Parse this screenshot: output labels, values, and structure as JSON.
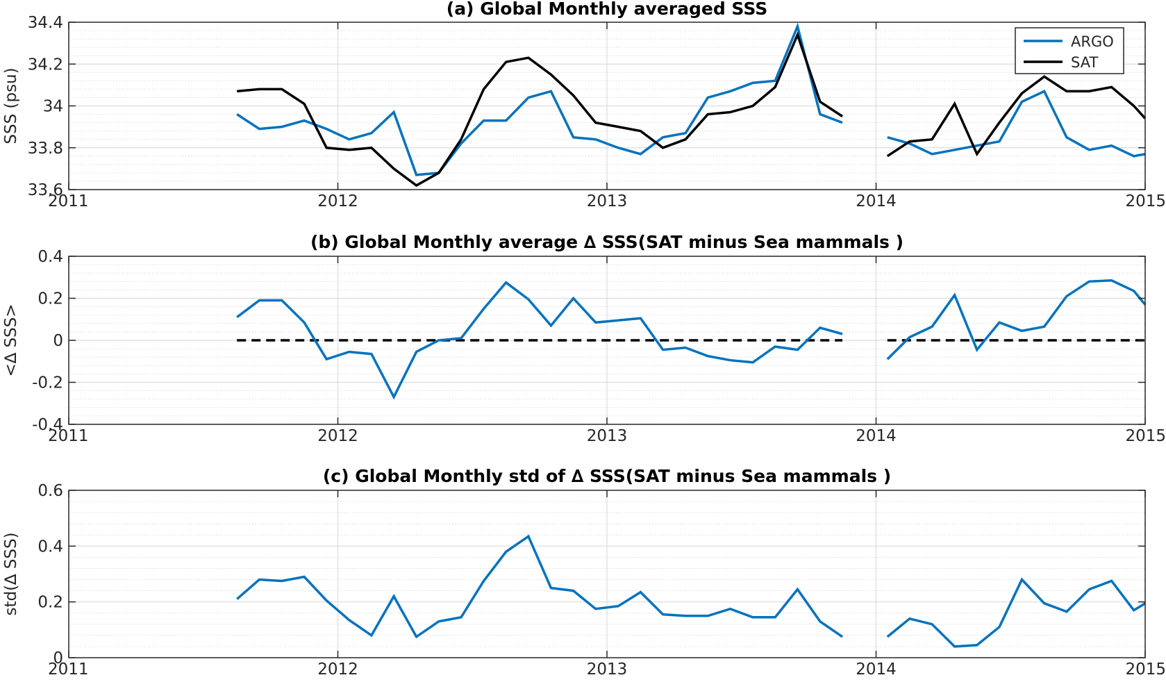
{
  "chart_data": [
    {
      "type": "line",
      "title": "(a) Global Monthly averaged SSS",
      "xlabel": "",
      "ylabel": "SSS (psu)",
      "xlim": [
        2011,
        2015
      ],
      "ylim": [
        33.6,
        34.4
      ],
      "xticks": [
        2011,
        2012,
        2013,
        2014,
        2015
      ],
      "xtick_labels": [
        "2011",
        "2012",
        "2013",
        "2014",
        "2015"
      ],
      "yticks": [
        33.6,
        33.8,
        34.0,
        34.2,
        34.4
      ],
      "ytick_labels": [
        "33.6",
        "33.8",
        "34",
        "34.2",
        "34.4"
      ],
      "grid": true,
      "minor_grid": true,
      "legend": "top-right",
      "series": [
        {
          "name": "ARGO",
          "color": "#0072BD",
          "x": [
            2011.625,
            2011.708,
            2011.792,
            2011.875,
            2011.958,
            2012.042,
            2012.125,
            2012.208,
            2012.292,
            2012.375,
            2012.458,
            2012.542,
            2012.625,
            2012.708,
            2012.792,
            2012.875,
            2012.958,
            2013.042,
            2013.125,
            2013.208,
            2013.292,
            2013.375,
            2013.458,
            2013.542,
            2013.625,
            2013.708,
            2013.792,
            2013.875,
            null,
            2014.042,
            2014.125,
            2014.208,
            2014.292,
            2014.375,
            2014.458,
            2014.542,
            2014.625,
            2014.708,
            2014.792,
            2014.875,
            2014.958,
            2015.0
          ],
          "values": [
            33.96,
            33.89,
            33.9,
            33.93,
            33.89,
            33.84,
            33.87,
            33.97,
            33.67,
            33.68,
            33.82,
            33.93,
            33.93,
            34.04,
            34.07,
            33.85,
            33.84,
            33.8,
            33.77,
            33.85,
            33.87,
            34.04,
            34.07,
            34.11,
            34.12,
            34.38,
            33.96,
            33.92,
            null,
            33.85,
            33.82,
            33.77,
            33.79,
            33.81,
            33.83,
            34.02,
            34.07,
            33.85,
            33.79,
            33.81,
            33.76,
            33.77
          ]
        },
        {
          "name": "SAT",
          "color": "#000000",
          "x": [
            2011.625,
            2011.708,
            2011.792,
            2011.875,
            2011.958,
            2012.042,
            2012.125,
            2012.208,
            2012.292,
            2012.375,
            2012.458,
            2012.542,
            2012.625,
            2012.708,
            2012.792,
            2012.875,
            2012.958,
            2013.042,
            2013.125,
            2013.208,
            2013.292,
            2013.375,
            2013.458,
            2013.542,
            2013.625,
            2013.708,
            2013.792,
            2013.875,
            null,
            2014.042,
            2014.125,
            2014.208,
            2014.292,
            2014.375,
            2014.458,
            2014.542,
            2014.625,
            2014.708,
            2014.792,
            2014.875,
            2014.958,
            2015.0
          ],
          "values": [
            34.07,
            34.08,
            34.08,
            34.01,
            33.8,
            33.79,
            33.8,
            33.7,
            33.62,
            33.68,
            33.84,
            34.08,
            34.21,
            34.23,
            34.15,
            34.05,
            33.92,
            33.9,
            33.88,
            33.8,
            33.84,
            33.96,
            33.97,
            34.0,
            34.09,
            34.34,
            34.02,
            33.95,
            null,
            33.76,
            33.83,
            33.84,
            34.01,
            33.77,
            33.92,
            34.06,
            34.14,
            34.07,
            34.07,
            34.09,
            34.0,
            33.94
          ]
        }
      ]
    },
    {
      "type": "line",
      "title": "(b) Global Monthly average ∆ SSS(SAT minus Sea mammals )",
      "xlabel": "",
      "ylabel": "<∆ SSS>",
      "xlim": [
        2011,
        2015
      ],
      "ylim": [
        -0.4,
        0.4
      ],
      "xticks": [
        2011,
        2012,
        2013,
        2014,
        2015
      ],
      "xtick_labels": [
        "2011",
        "2012",
        "2013",
        "2014",
        "2015"
      ],
      "yticks": [
        -0.4,
        -0.2,
        0,
        0.2,
        0.4
      ],
      "ytick_labels": [
        "-0.4",
        "-0.2",
        "0",
        "0.2",
        "0.4"
      ],
      "grid": true,
      "minor_grid": true,
      "zero_line": {
        "value": 0,
        "color": "#000000",
        "style": "dashed",
        "segments": [
          [
            2011.625,
            2013.875
          ],
          [
            2014.042,
            2015.0
          ]
        ]
      },
      "series": [
        {
          "color": "#0072BD",
          "x": [
            2011.625,
            2011.708,
            2011.792,
            2011.875,
            2011.958,
            2012.042,
            2012.125,
            2012.208,
            2012.292,
            2012.375,
            2012.458,
            2012.542,
            2012.625,
            2012.708,
            2012.792,
            2012.875,
            2012.958,
            2013.042,
            2013.125,
            2013.208,
            2013.292,
            2013.375,
            2013.458,
            2013.542,
            2013.625,
            2013.708,
            2013.792,
            2013.875,
            null,
            2014.042,
            2014.125,
            2014.208,
            2014.292,
            2014.375,
            2014.458,
            2014.542,
            2014.625,
            2014.708,
            2014.792,
            2014.875,
            2014.958,
            2015.0
          ],
          "values": [
            0.11,
            0.19,
            0.19,
            0.085,
            -0.09,
            -0.055,
            -0.065,
            -0.27,
            -0.055,
            0.0,
            0.01,
            0.15,
            0.275,
            0.195,
            0.07,
            0.2,
            0.085,
            0.095,
            0.105,
            -0.045,
            -0.035,
            -0.075,
            -0.095,
            -0.105,
            -0.03,
            -0.045,
            0.06,
            0.03,
            null,
            -0.09,
            0.015,
            0.065,
            0.215,
            -0.045,
            0.085,
            0.045,
            0.065,
            0.21,
            0.28,
            0.285,
            0.235,
            0.17
          ]
        }
      ]
    },
    {
      "type": "line",
      "title": "(c) Global Monthly std of ∆ SSS(SAT minus Sea mammals )",
      "xlabel": "",
      "ylabel": "std(∆ SSS)",
      "xlim": [
        2011,
        2015
      ],
      "ylim": [
        0,
        0.6
      ],
      "xticks": [
        2011,
        2012,
        2013,
        2014,
        2015
      ],
      "xtick_labels": [
        "2011",
        "2012",
        "2013",
        "2014",
        "2015"
      ],
      "yticks": [
        0,
        0.2,
        0.4,
        0.6
      ],
      "ytick_labels": [
        "0",
        "0.2",
        "0.4",
        "0.6"
      ],
      "grid": true,
      "minor_grid": true,
      "series": [
        {
          "color": "#0072BD",
          "x": [
            2011.625,
            2011.708,
            2011.792,
            2011.875,
            2011.958,
            2012.042,
            2012.125,
            2012.208,
            2012.292,
            2012.375,
            2012.458,
            2012.542,
            2012.625,
            2012.708,
            2012.792,
            2012.875,
            2012.958,
            2013.042,
            2013.125,
            2013.208,
            2013.292,
            2013.375,
            2013.458,
            2013.542,
            2013.625,
            2013.708,
            2013.792,
            2013.875,
            null,
            2014.042,
            2014.125,
            2014.208,
            2014.292,
            2014.375,
            2014.458,
            2014.542,
            2014.625,
            2014.708,
            2014.792,
            2014.875,
            2014.958,
            2015.0
          ],
          "values": [
            0.21,
            0.28,
            0.275,
            0.29,
            0.205,
            0.135,
            0.08,
            0.22,
            0.075,
            0.13,
            0.145,
            0.275,
            0.38,
            0.435,
            0.25,
            0.24,
            0.175,
            0.185,
            0.235,
            0.155,
            0.15,
            0.15,
            0.175,
            0.145,
            0.145,
            0.245,
            0.13,
            0.075,
            null,
            0.075,
            0.14,
            0.12,
            0.04,
            0.045,
            0.11,
            0.28,
            0.195,
            0.165,
            0.245,
            0.275,
            0.17,
            0.195
          ]
        }
      ]
    }
  ]
}
